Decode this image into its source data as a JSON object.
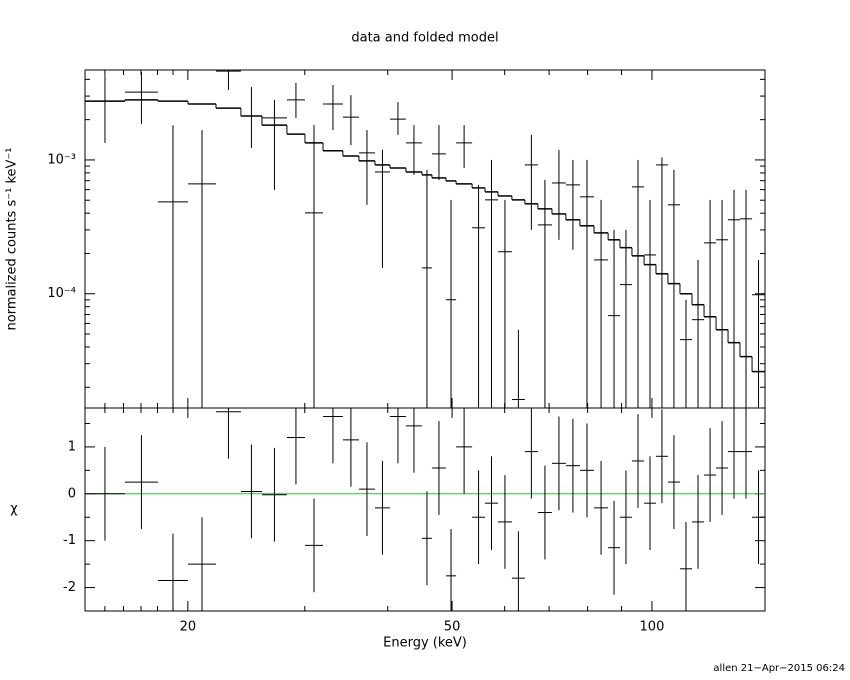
{
  "chart_data": {
    "type": "spectrum",
    "title": "data and folded model",
    "xlabel": "Energy (keV)",
    "xlog": true,
    "xlim": [
      14,
      148
    ],
    "xticks": [
      20,
      50,
      100
    ],
    "xminorticks": [
      15,
      16,
      17,
      18,
      19,
      30,
      40,
      60,
      70,
      80,
      90
    ],
    "bin_edges": [
      14.0,
      16.08,
      18.03,
      20.01,
      22.05,
      24.04,
      25.86,
      28.2,
      30.02,
      31.96,
      34.24,
      36.2,
      38.27,
      40.31,
      42.61,
      45.04,
      46.63,
      48.95,
      50.7,
      53.6,
      56.05,
      58.63,
      61.53,
      64.36,
      67.33,
      70.7,
      74.2,
      77.9,
      81.8,
      85.9,
      89.5,
      93.3,
      97.3,
      101.4,
      105.7,
      110.2,
      114.9,
      119.8,
      124.9,
      130.2,
      135.7,
      141.5,
      148.0
    ],
    "panels": [
      {
        "ylabel": "normalized counts s⁻¹ keV⁻¹",
        "ylog": true,
        "ylim": [
          1.4e-05,
          0.0047
        ],
        "yticks": [
          {
            "value": 0.0001,
            "label": "10⁻⁴"
          },
          {
            "value": 0.001,
            "label": "10⁻³"
          }
        ],
        "yminorticks": [
          2e-05,
          3e-05,
          4e-05,
          5e-05,
          6e-05,
          7e-05,
          8e-05,
          9e-05,
          0.0002,
          0.0003,
          0.0004,
          0.0005,
          0.0006,
          0.0007,
          0.0008,
          0.0009,
          0.002,
          0.003,
          0.004
        ],
        "data": {
          "color": "#000000",
          "values": [
            0.00275,
            0.00321,
            0.000486,
            0.000662,
            0.00461,
            0.00213,
            0.00206,
            0.00281,
            0.000402,
            0.00262,
            0.00209,
            0.00113,
            0.000813,
            0.00202,
            0.00134,
            0.000156,
            0.00111,
            9.02e-05,
            0.00134,
            0.000311,
            0.000503,
            0.000206,
            1.62e-05,
            0.000918,
            0.000327,
            0.000673,
            0.000651,
            0.00053,
            0.000179,
            6.86e-05,
            0.000117,
            0.000629,
            0.000195,
            0.000918,
            0.000462,
            4.54e-05,
            6.4e-05,
            0.00024,
            0.000253,
            0.000357,
            0.000363,
            9.83e-05
          ],
          "y_low": [
            0.00134,
            0.00186,
            1e-05,
            1e-05,
            0.00333,
            0.00123,
            0.000597,
            0.00206,
            1e-05,
            0.00167,
            0.00129,
            0.000462,
            0.000156,
            0.00154,
            0.000773,
            1e-05,
            0.000709,
            1e-05,
            0.000871,
            1e-05,
            1e-05,
            1e-05,
            1e-05,
            0.0003,
            1e-05,
            0.000253,
            0.000213,
            1e-05,
            1e-05,
            1e-05,
            1e-05,
            1e-05,
            1e-05,
            1e-05,
            1e-05,
            1e-05,
            1e-05,
            1e-05,
            1e-05,
            1e-05,
            1e-05,
            1e-05
          ],
          "y_high": [
            0.0043,
            0.00454,
            0.00182,
            0.00167,
            0.00502,
            0.00351,
            0.00281,
            0.00376,
            0.00182,
            0.00363,
            0.00305,
            0.00167,
            0.00119,
            0.00271,
            0.00182,
            0.000842,
            0.00182,
            0.000503,
            0.00182,
            0.000651,
            0.001,
            0.000503,
            5.38e-05,
            0.00154,
            0.000709,
            0.00119,
            0.001,
            0.001,
            0.000503,
            0.0003,
            0.0003,
            0.001,
            0.000503,
            0.00104,
            0.000842,
            9.02e-05,
            0.000179,
            0.000503,
            0.000503,
            0.000597,
            0.000597,
            0.000179
          ]
        },
        "model": {
          "color": "#000000",
          "values": [
            0.00275,
            0.00281,
            0.00275,
            0.00262,
            0.00244,
            0.00213,
            0.00182,
            0.00156,
            0.00134,
            0.00117,
            0.00107,
            0.000983,
            0.000918,
            0.000871,
            0.000813,
            0.000773,
            0.000734,
            0.000697,
            0.000662,
            0.000618,
            0.000577,
            0.000538,
            0.000503,
            0.00047,
            0.000431,
            0.000395,
            0.000357,
            0.000322,
            0.000285,
            0.000253,
            0.000221,
            0.000192,
            0.000165,
            0.000141,
            0.000119,
            0.0001,
            8.28e-05,
            6.73e-05,
            5.38e-05,
            4.31e-05,
            3.39e-05,
            2.62e-05
          ]
        }
      },
      {
        "ylabel": "χ",
        "ylog": false,
        "ylim": [
          -2.5,
          1.83
        ],
        "yticks": [
          -2,
          -1,
          0,
          1
        ],
        "yminorticks": [
          -2.5,
          -1.5,
          -0.5,
          0.5,
          1.5
        ],
        "reference": {
          "value": 0,
          "color": "#22cc22"
        },
        "data": {
          "color": "#000000",
          "values": [
            0.0,
            0.25,
            -1.85,
            -1.5,
            1.75,
            0.05,
            -0.02,
            1.2,
            -1.1,
            1.65,
            1.15,
            0.1,
            -0.3,
            1.65,
            1.45,
            -0.95,
            0.55,
            -1.75,
            1.0,
            -0.5,
            -0.2,
            -0.6,
            -1.8,
            0.9,
            -0.4,
            0.65,
            0.6,
            0.5,
            -0.3,
            -1.15,
            -0.5,
            0.7,
            -0.2,
            0.8,
            0.25,
            -1.6,
            -0.6,
            0.4,
            0.55,
            0.9,
            0.9,
            -0.5
          ],
          "errors": [
            1,
            1,
            1,
            1,
            1,
            1,
            1,
            1,
            1,
            1,
            1,
            1,
            1,
            1,
            1,
            1,
            1,
            1,
            1,
            1,
            1,
            1,
            1,
            1,
            1,
            1,
            1,
            1,
            1,
            1,
            1,
            1,
            1,
            1,
            1,
            1,
            1,
            1,
            1,
            1,
            1,
            1
          ]
        }
      }
    ],
    "footer": "allen 21−Apr−2015 06:24"
  }
}
